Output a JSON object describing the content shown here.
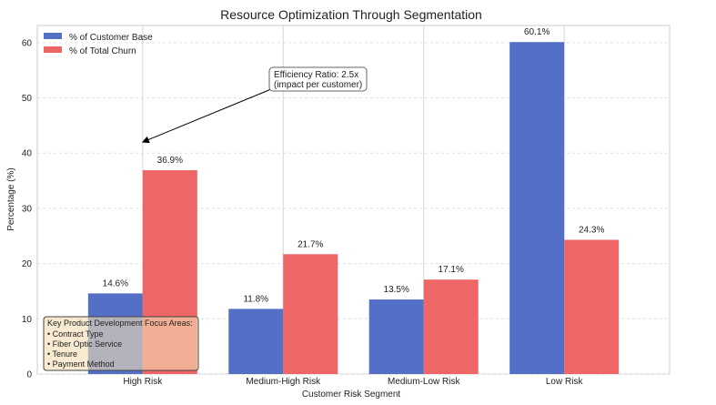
{
  "chart_data": {
    "type": "bar",
    "title": "Resource Optimization Through Segmentation",
    "xlabel": "Customer Risk Segment",
    "ylabel": "Percentage (%)",
    "categories": [
      "High Risk",
      "Medium-High Risk",
      "Medium-Low Risk",
      "Low Risk"
    ],
    "series": [
      {
        "name": "% of Customer Base",
        "color": "#5470c6",
        "values": [
          14.6,
          11.8,
          13.5,
          60.1
        ],
        "labels": [
          "14.6%",
          "11.8%",
          "13.5%",
          "60.1%"
        ]
      },
      {
        "name": "% of Total Churn",
        "color": "#ee6666",
        "values": [
          36.9,
          21.7,
          17.1,
          24.3
        ],
        "labels": [
          "36.9%",
          "21.7%",
          "17.1%",
          "24.3%"
        ]
      }
    ],
    "ylim": [
      0,
      63.1
    ],
    "yticks": [
      0,
      10,
      20,
      30,
      40,
      50,
      60
    ],
    "grid": true,
    "legend_position": "top-left",
    "annotation": {
      "lines": [
        "Efficiency Ratio: 2.5x",
        "(impact per customer)"
      ],
      "arrow_target": {
        "category": "High Risk",
        "y": 42
      }
    },
    "notes": {
      "lines": [
        "Key Product Development Focus Areas:",
        "• Contract Type",
        "• Fiber Optic Service",
        "• Tenure",
        "• Payment Method"
      ],
      "color": "#f5deb3"
    }
  }
}
